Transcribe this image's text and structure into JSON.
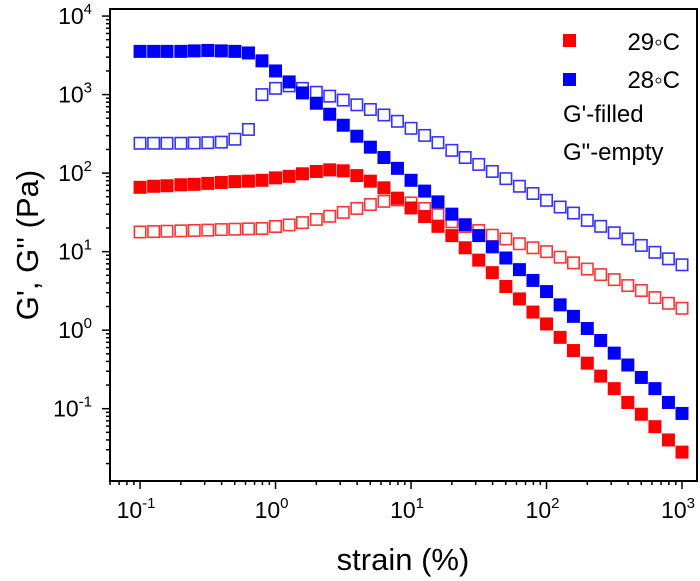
{
  "chart_data": {
    "type": "scatter",
    "title": "",
    "xlabel": "strain (%)",
    "ylabel": "G', G'' (Pa)",
    "xscale": "log",
    "yscale": "log",
    "xlim": [
      0.06,
      1290
    ],
    "ylim": [
      0.012,
      12300
    ],
    "grid": false,
    "legend_position": "top-right",
    "x_ticks": [
      {
        "base": "10",
        "exp": "-1",
        "value": 0.1
      },
      {
        "base": "10",
        "exp": "0",
        "value": 1
      },
      {
        "base": "10",
        "exp": "1",
        "value": 10
      },
      {
        "base": "10",
        "exp": "2",
        "value": 100
      },
      {
        "base": "10",
        "exp": "3",
        "value": 1000
      }
    ],
    "y_ticks": [
      {
        "base": "10",
        "exp": "-1",
        "value": 0.1
      },
      {
        "base": "10",
        "exp": "0",
        "value": 1
      },
      {
        "base": "10",
        "exp": "1",
        "value": 10
      },
      {
        "base": "10",
        "exp": "2",
        "value": 100
      },
      {
        "base": "10",
        "exp": "3",
        "value": 1000
      },
      {
        "base": "10",
        "exp": "4",
        "value": 10000
      }
    ],
    "legend": [
      {
        "label": "29◦C",
        "color": "#ff0000",
        "marker": "filled-square"
      },
      {
        "label": "28◦C",
        "color": "#0000ff",
        "marker": "filled-square"
      },
      {
        "label": "G'-filled"
      },
      {
        "label": "G\"-empty"
      }
    ],
    "x": [
      0.1,
      0.126,
      0.158,
      0.2,
      0.251,
      0.316,
      0.398,
      0.501,
      0.631,
      0.794,
      1,
      1.26,
      1.58,
      2,
      2.51,
      3.16,
      3.98,
      5.01,
      6.31,
      7.94,
      10,
      12.6,
      15.8,
      20,
      25.1,
      31.6,
      39.8,
      50.1,
      63.1,
      79.4,
      100,
      126,
      158,
      200,
      251,
      316,
      398,
      501,
      631,
      794,
      1000
    ],
    "series": [
      {
        "temperature": "29◦C",
        "modulus": "G'",
        "color": "#ff0000",
        "filled": true,
        "values": [
          66,
          68,
          69,
          71,
          72,
          74,
          76,
          78,
          79,
          81,
          87,
          91,
          98,
          105,
          110,
          107,
          93,
          79,
          65,
          48,
          36,
          28,
          21,
          16,
          11.2,
          7.8,
          5.4,
          3.6,
          2.5,
          1.7,
          1.2,
          0.81,
          0.55,
          0.38,
          0.26,
          0.18,
          0.12,
          0.085,
          0.059,
          0.04,
          0.028
        ]
      },
      {
        "temperature": "29◦C",
        "modulus": "G\"",
        "color": "#ff0000",
        "filled": false,
        "values": [
          17.8,
          18,
          18.2,
          18.4,
          18.6,
          18.8,
          19.1,
          19.3,
          19.5,
          19.7,
          20.9,
          21.9,
          23.4,
          25.7,
          28.2,
          31.6,
          35.5,
          39.8,
          43.7,
          45.7,
          41.7,
          35.5,
          29.5,
          24,
          20.9,
          18.6,
          16.2,
          14.5,
          12.6,
          11.2,
          10,
          8.5,
          7.2,
          6,
          5.1,
          4.4,
          3.7,
          3.2,
          2.6,
          2.2,
          1.9
        ]
      },
      {
        "temperature": "28◦C",
        "modulus": "G'",
        "color": "#0000ff",
        "filled": true,
        "values": [
          3550,
          3550,
          3550,
          3550,
          3600,
          3650,
          3600,
          3550,
          3390,
          2690,
          2000,
          1450,
          1050,
          776,
          562,
          407,
          295,
          214,
          158,
          115,
          81,
          59,
          43,
          30,
          22,
          16,
          11.5,
          8.3,
          5.9,
          4.3,
          3.1,
          2.1,
          1.5,
          1.05,
          0.74,
          0.51,
          0.36,
          0.25,
          0.18,
          0.12,
          0.087
        ]
      },
      {
        "temperature": "28◦C",
        "modulus": "G\"",
        "color": "#0000ff",
        "filled": false,
        "values": [
          240,
          240,
          240,
          240,
          242,
          244,
          248,
          270,
          360,
          1000,
          1200,
          1290,
          1200,
          1070,
          955,
          851,
          741,
          646,
          550,
          457,
          372,
          302,
          245,
          195,
          158,
          129,
          105,
          85,
          68,
          55,
          45,
          37,
          31,
          25,
          21,
          17.4,
          14.5,
          12,
          9.8,
          8.1,
          6.8
        ]
      }
    ]
  }
}
